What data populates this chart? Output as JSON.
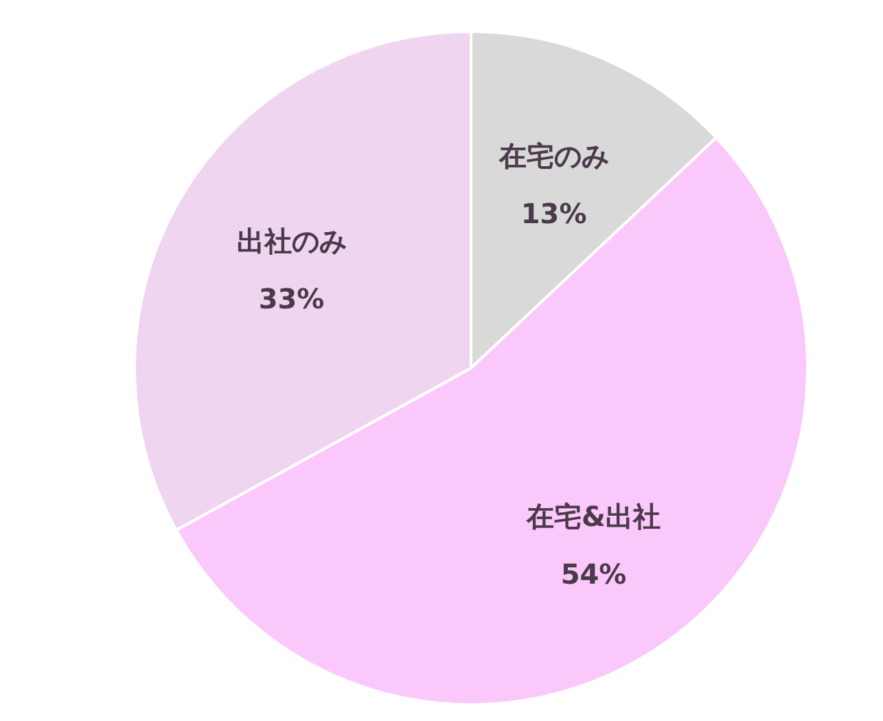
{
  "chart_data": {
    "type": "pie",
    "categories": [
      "在宅のみ",
      "在宅&出社",
      "出社のみ"
    ],
    "values": [
      13,
      54,
      33
    ],
    "value_labels": [
      "13%",
      "54%",
      "33%"
    ],
    "colors": [
      "#d9d9d9",
      "#fbc8fb",
      "#efd5ef"
    ]
  }
}
